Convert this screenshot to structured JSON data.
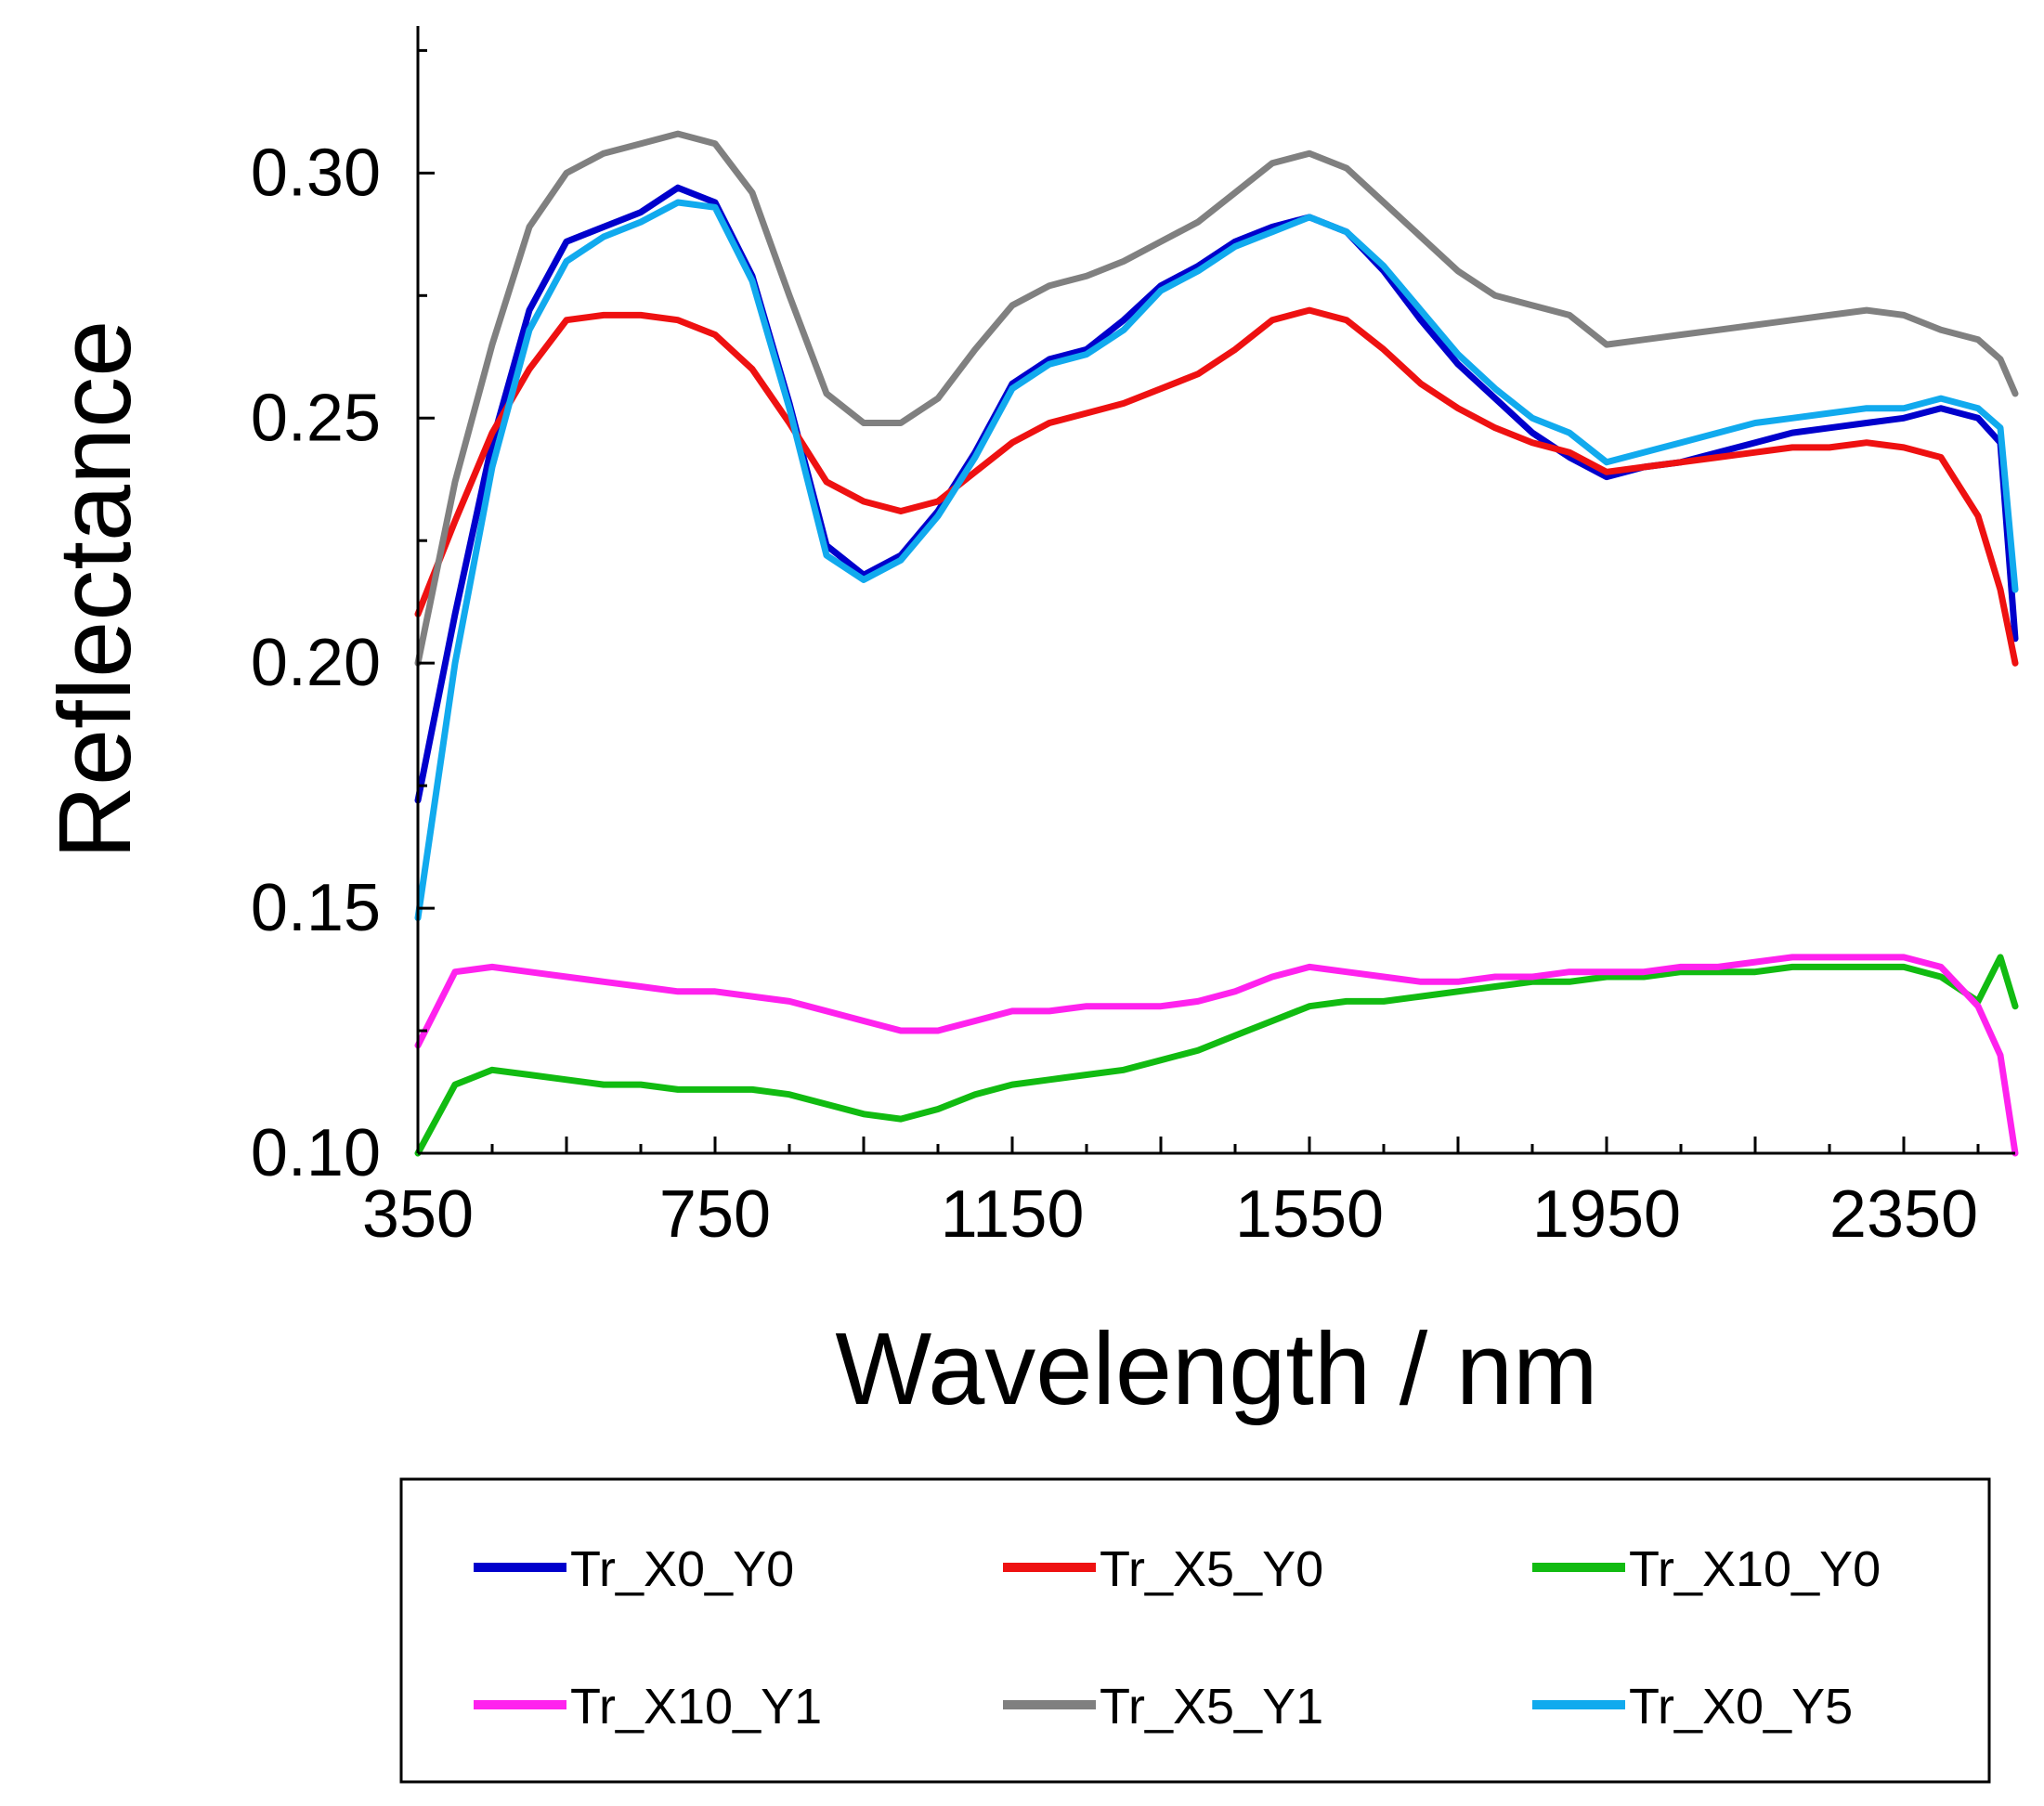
{
  "chart_data": {
    "type": "line",
    "title": "",
    "xlabel": "Wavelength / nm",
    "ylabel": "Reflectance",
    "xlim": [
      350,
      2500
    ],
    "ylim": [
      0.1,
      0.33
    ],
    "x_ticks": [
      350,
      750,
      1150,
      1550,
      1950,
      2350
    ],
    "x_tick_labels": [
      "350",
      "750",
      "1150",
      "1550",
      "1950",
      "2350"
    ],
    "y_ticks": [
      0.1,
      0.15,
      0.2,
      0.25,
      0.3
    ],
    "y_tick_labels": [
      "0.10",
      "0.15",
      "0.20",
      "0.25",
      "0.30"
    ],
    "grid": false,
    "legend": "bottom-outside",
    "series": [
      {
        "name": "Tr_X0_Y0",
        "color": "#0000cc",
        "x": [
          350,
          400,
          450,
          500,
          550,
          600,
          650,
          700,
          750,
          800,
          850,
          900,
          950,
          1000,
          1050,
          1100,
          1150,
          1200,
          1250,
          1300,
          1350,
          1400,
          1450,
          1500,
          1550,
          1600,
          1650,
          1700,
          1750,
          1800,
          1850,
          1900,
          1950,
          2000,
          2050,
          2100,
          2150,
          2200,
          2250,
          2300,
          2350,
          2400,
          2450,
          2480,
          2500
        ],
        "y": [
          0.172,
          0.21,
          0.245,
          0.272,
          0.286,
          0.289,
          0.292,
          0.297,
          0.294,
          0.279,
          0.253,
          0.224,
          0.218,
          0.222,
          0.231,
          0.243,
          0.257,
          0.262,
          0.264,
          0.27,
          0.277,
          0.281,
          0.286,
          0.289,
          0.291,
          0.288,
          0.28,
          0.27,
          0.261,
          0.254,
          0.247,
          0.242,
          0.238,
          0.24,
          0.241,
          0.243,
          0.245,
          0.247,
          0.248,
          0.249,
          0.25,
          0.252,
          0.25,
          0.245,
          0.205
        ]
      },
      {
        "name": "Tr_X5_Y0",
        "color": "#ee1111",
        "x": [
          350,
          400,
          450,
          500,
          550,
          600,
          650,
          700,
          750,
          800,
          850,
          900,
          950,
          1000,
          1050,
          1100,
          1150,
          1200,
          1250,
          1300,
          1350,
          1400,
          1450,
          1500,
          1550,
          1600,
          1650,
          1700,
          1750,
          1800,
          1850,
          1900,
          1950,
          2000,
          2050,
          2100,
          2150,
          2200,
          2250,
          2300,
          2350,
          2400,
          2450,
          2480,
          2500
        ],
        "y": [
          0.21,
          0.229,
          0.247,
          0.26,
          0.27,
          0.271,
          0.271,
          0.27,
          0.267,
          0.26,
          0.249,
          0.237,
          0.233,
          0.231,
          0.233,
          0.239,
          0.245,
          0.249,
          0.251,
          0.253,
          0.256,
          0.259,
          0.264,
          0.27,
          0.272,
          0.27,
          0.264,
          0.257,
          0.252,
          0.248,
          0.245,
          0.243,
          0.239,
          0.24,
          0.241,
          0.242,
          0.243,
          0.244,
          0.244,
          0.245,
          0.244,
          0.242,
          0.23,
          0.215,
          0.2
        ]
      },
      {
        "name": "Tr_X10_Y0",
        "color": "#11bb11",
        "x": [
          350,
          400,
          450,
          500,
          550,
          600,
          650,
          700,
          750,
          800,
          850,
          900,
          950,
          1000,
          1050,
          1100,
          1150,
          1200,
          1250,
          1300,
          1350,
          1400,
          1450,
          1500,
          1550,
          1600,
          1650,
          1700,
          1750,
          1800,
          1850,
          1900,
          1950,
          2000,
          2050,
          2100,
          2150,
          2200,
          2250,
          2300,
          2350,
          2400,
          2450,
          2480,
          2500
        ],
        "y": [
          0.1,
          0.114,
          0.117,
          0.116,
          0.115,
          0.114,
          0.114,
          0.113,
          0.113,
          0.113,
          0.112,
          0.11,
          0.108,
          0.107,
          0.109,
          0.112,
          0.114,
          0.115,
          0.116,
          0.117,
          0.119,
          0.121,
          0.124,
          0.127,
          0.13,
          0.131,
          0.131,
          0.132,
          0.133,
          0.134,
          0.135,
          0.135,
          0.136,
          0.136,
          0.137,
          0.137,
          0.137,
          0.138,
          0.138,
          0.138,
          0.138,
          0.136,
          0.131,
          0.14,
          0.13
        ]
      },
      {
        "name": "Tr_X10_Y1",
        "color": "#ff22ee",
        "x": [
          350,
          400,
          450,
          500,
          550,
          600,
          650,
          700,
          750,
          800,
          850,
          900,
          950,
          1000,
          1050,
          1100,
          1150,
          1200,
          1250,
          1300,
          1350,
          1400,
          1450,
          1500,
          1550,
          1600,
          1650,
          1700,
          1750,
          1800,
          1850,
          1900,
          1950,
          2000,
          2050,
          2100,
          2150,
          2200,
          2250,
          2300,
          2350,
          2400,
          2450,
          2480,
          2500
        ],
        "y": [
          0.122,
          0.137,
          0.138,
          0.137,
          0.136,
          0.135,
          0.134,
          0.133,
          0.133,
          0.132,
          0.131,
          0.129,
          0.127,
          0.125,
          0.125,
          0.127,
          0.129,
          0.129,
          0.13,
          0.13,
          0.13,
          0.131,
          0.133,
          0.136,
          0.138,
          0.137,
          0.136,
          0.135,
          0.135,
          0.136,
          0.136,
          0.137,
          0.137,
          0.137,
          0.138,
          0.138,
          0.139,
          0.14,
          0.14,
          0.14,
          0.14,
          0.138,
          0.13,
          0.12,
          0.1
        ]
      },
      {
        "name": "Tr_X5_Y1",
        "color": "#808080",
        "x": [
          350,
          400,
          450,
          500,
          550,
          600,
          650,
          700,
          750,
          800,
          850,
          900,
          950,
          1000,
          1050,
          1100,
          1150,
          1200,
          1250,
          1300,
          1350,
          1400,
          1450,
          1500,
          1550,
          1600,
          1650,
          1700,
          1750,
          1800,
          1850,
          1900,
          1950,
          2000,
          2050,
          2100,
          2150,
          2200,
          2250,
          2300,
          2350,
          2400,
          2450,
          2480,
          2500
        ],
        "y": [
          0.2,
          0.237,
          0.265,
          0.289,
          0.3,
          0.304,
          0.306,
          0.308,
          0.306,
          0.296,
          0.275,
          0.255,
          0.249,
          0.249,
          0.254,
          0.264,
          0.273,
          0.277,
          0.279,
          0.282,
          0.286,
          0.29,
          0.296,
          0.302,
          0.304,
          0.301,
          0.294,
          0.287,
          0.28,
          0.275,
          0.273,
          0.271,
          0.265,
          0.266,
          0.267,
          0.268,
          0.269,
          0.27,
          0.271,
          0.272,
          0.271,
          0.268,
          0.266,
          0.262,
          0.255
        ]
      },
      {
        "name": "Tr_X0_Y5",
        "color": "#11aaee",
        "x": [
          350,
          400,
          450,
          500,
          550,
          600,
          650,
          700,
          750,
          800,
          850,
          900,
          950,
          1000,
          1050,
          1100,
          1150,
          1200,
          1250,
          1300,
          1350,
          1400,
          1450,
          1500,
          1550,
          1600,
          1650,
          1700,
          1750,
          1800,
          1850,
          1900,
          1950,
          2000,
          2050,
          2100,
          2150,
          2200,
          2250,
          2300,
          2350,
          2400,
          2450,
          2480,
          2500
        ],
        "y": [
          0.148,
          0.2,
          0.24,
          0.268,
          0.282,
          0.287,
          0.29,
          0.294,
          0.293,
          0.278,
          0.252,
          0.222,
          0.217,
          0.221,
          0.23,
          0.242,
          0.256,
          0.261,
          0.263,
          0.268,
          0.276,
          0.28,
          0.285,
          0.288,
          0.291,
          0.288,
          0.281,
          0.272,
          0.263,
          0.256,
          0.25,
          0.247,
          0.241,
          0.243,
          0.245,
          0.247,
          0.249,
          0.25,
          0.251,
          0.252,
          0.252,
          0.254,
          0.252,
          0.248,
          0.215
        ]
      }
    ]
  }
}
